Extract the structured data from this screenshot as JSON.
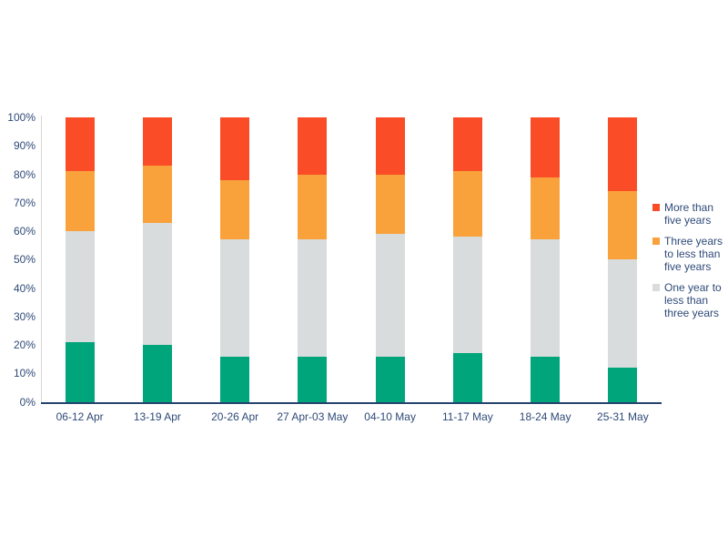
{
  "chart_data": {
    "type": "bar",
    "stacked": true,
    "percent_stacked": true,
    "title": "",
    "xlabel": "",
    "ylabel": "",
    "grid": false,
    "categories": [
      "06-12 Apr",
      "13-19 Apr",
      "20-26 Apr",
      "27 Apr-03 May",
      "04-10 May",
      "11-17 May",
      "18-24 May",
      "25-31 May"
    ],
    "series": [
      {
        "name": "unlabeled-green-segment",
        "color": "#00A57C",
        "in_legend": false,
        "values": [
          21,
          20,
          16,
          16,
          16,
          17,
          16,
          12
        ]
      },
      {
        "name": "One year to less than three years",
        "color": "#D9DCDC",
        "in_legend": true,
        "values": [
          39,
          43,
          41,
          41,
          43,
          41,
          41,
          38
        ]
      },
      {
        "name": "Three years to less than five years",
        "color": "#F9A23C",
        "in_legend": true,
        "values": [
          21,
          20,
          21,
          23,
          21,
          23,
          22,
          24
        ]
      },
      {
        "name": "More than five years",
        "color": "#F94C27",
        "in_legend": true,
        "values": [
          19,
          17,
          22,
          20,
          20,
          19,
          21,
          26
        ]
      }
    ],
    "y_axis": {
      "min": 0,
      "max": 100,
      "ticks": [
        "0%",
        "10%",
        "20%",
        "30%",
        "40%",
        "50%",
        "60%",
        "70%",
        "80%",
        "90%",
        "100%"
      ]
    },
    "legend": {
      "position": "right",
      "entries": [
        {
          "label": "More than five years",
          "color": "#F94C27"
        },
        {
          "label": "Three years to less than five years",
          "color": "#F9A23C"
        },
        {
          "label": "One year to less than three years",
          "color": "#D9DCDC"
        }
      ]
    }
  },
  "style": {
    "text_color": "#2E4A78",
    "axis_line_color": "#26436E",
    "y_axis_line_color": "#D6D6D6",
    "background": "#ffffff"
  }
}
